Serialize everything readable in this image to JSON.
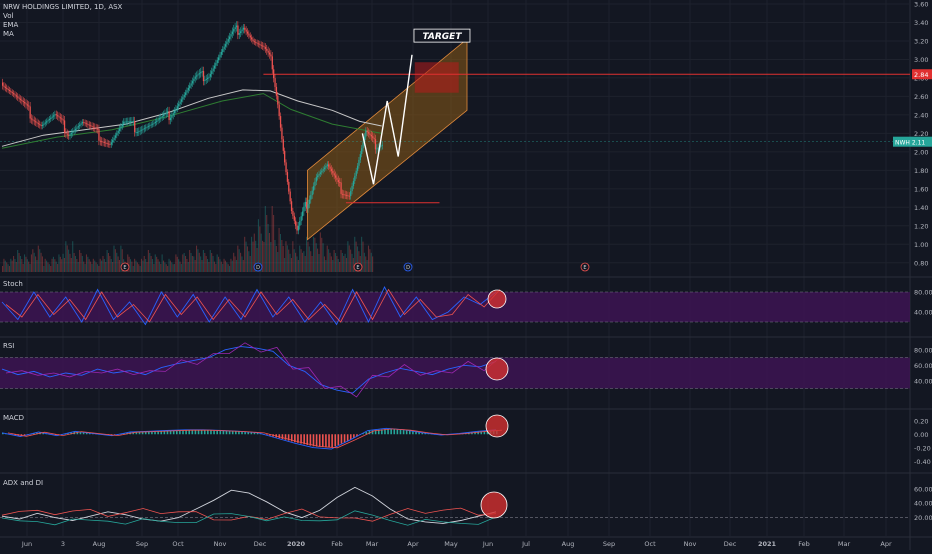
{
  "header": {
    "symbol_title": "NRW HOLDINGS LIMITED, 1D, ASX",
    "indicators": [
      "Vol",
      "EMA",
      "MA"
    ]
  },
  "annotations": {
    "target_label": "TARGET",
    "resistance_price": "2.84",
    "current_price_tag": "NWH 2.11"
  },
  "panes": {
    "stoch": "Stoch",
    "rsi": "RSI",
    "macd": "MACD",
    "adx": "ADX and DI"
  },
  "colors": {
    "background": "#131722",
    "grid": "#1e222d",
    "up_candle": "#26a69a",
    "down_candle": "#ef5350",
    "channel_fill": "#8a5a16",
    "channel_edge": "#e08a3c",
    "resistance_line": "#e03030",
    "oscillator_band": "#3d1452",
    "price_tag": "#26a69a"
  },
  "chart_data": [
    {
      "type": "candlestick",
      "title": "NRW HOLDINGS LIMITED, 1D, ASX",
      "x_tick_labels": [
        "Jun",
        "3",
        "Aug",
        "Sep",
        "Oct",
        "Nov",
        "Dec",
        "2020",
        "Feb",
        "Mar",
        "Apr",
        "May",
        "Jun",
        "Jul",
        "Aug",
        "Sep",
        "Oct",
        "Nov",
        "Dec",
        "2021",
        "Feb",
        "Mar",
        "Apr"
      ],
      "y_tick_labels": [
        "3.60",
        "3.40",
        "3.20",
        "3.00",
        "2.80",
        "2.60",
        "2.40",
        "2.20",
        "2.00",
        "1.80",
        "1.60",
        "1.40",
        "1.20",
        "1.00",
        "0.80"
      ],
      "ylim": [
        0.7,
        3.6
      ],
      "price_path": [
        {
          "x": 0,
          "y": 2.75
        },
        {
          "x": 8,
          "y": 2.62
        },
        {
          "x": 18,
          "y": 2.45
        },
        {
          "x": 28,
          "y": 2.3
        },
        {
          "x": 38,
          "y": 2.38
        },
        {
          "x": 48,
          "y": 2.22
        },
        {
          "x": 58,
          "y": 2.32
        },
        {
          "x": 68,
          "y": 2.2
        },
        {
          "x": 78,
          "y": 2.1
        },
        {
          "x": 88,
          "y": 2.3
        },
        {
          "x": 98,
          "y": 2.26
        },
        {
          "x": 110,
          "y": 2.3
        },
        {
          "x": 120,
          "y": 2.38
        },
        {
          "x": 132,
          "y": 2.62
        },
        {
          "x": 140,
          "y": 2.78
        },
        {
          "x": 150,
          "y": 2.85
        },
        {
          "x": 160,
          "y": 3.1
        },
        {
          "x": 168,
          "y": 3.28
        },
        {
          "x": 175,
          "y": 3.38
        },
        {
          "x": 182,
          "y": 3.2
        },
        {
          "x": 190,
          "y": 3.1
        },
        {
          "x": 196,
          "y": 2.95
        },
        {
          "x": 200,
          "y": 2.55
        },
        {
          "x": 205,
          "y": 1.9
        },
        {
          "x": 210,
          "y": 1.35
        },
        {
          "x": 214,
          "y": 1.12
        },
        {
          "x": 220,
          "y": 1.4
        },
        {
          "x": 228,
          "y": 1.75
        },
        {
          "x": 236,
          "y": 1.85
        },
        {
          "x": 244,
          "y": 1.62
        },
        {
          "x": 252,
          "y": 1.55
        },
        {
          "x": 258,
          "y": 1.85
        },
        {
          "x": 264,
          "y": 2.2
        },
        {
          "x": 270,
          "y": 2.08
        },
        {
          "x": 276,
          "y": 2.11
        }
      ],
      "moving_average_path": [
        {
          "x": 0,
          "y": 2.06
        },
        {
          "x": 30,
          "y": 2.18
        },
        {
          "x": 60,
          "y": 2.24
        },
        {
          "x": 90,
          "y": 2.3
        },
        {
          "x": 120,
          "y": 2.42
        },
        {
          "x": 150,
          "y": 2.58
        },
        {
          "x": 175,
          "y": 2.67
        },
        {
          "x": 195,
          "y": 2.66
        },
        {
          "x": 215,
          "y": 2.55
        },
        {
          "x": 240,
          "y": 2.45
        },
        {
          "x": 260,
          "y": 2.33
        },
        {
          "x": 276,
          "y": 2.28
        }
      ],
      "ema_path": [
        {
          "x": 0,
          "y": 2.04
        },
        {
          "x": 40,
          "y": 2.16
        },
        {
          "x": 80,
          "y": 2.24
        },
        {
          "x": 120,
          "y": 2.38
        },
        {
          "x": 160,
          "y": 2.55
        },
        {
          "x": 190,
          "y": 2.63
        },
        {
          "x": 210,
          "y": 2.46
        },
        {
          "x": 240,
          "y": 2.3
        },
        {
          "x": 276,
          "y": 2.2
        }
      ],
      "channel": {
        "x_start": 222,
        "x_end": 338,
        "lower_start": 1.05,
        "lower_end": 2.45,
        "upper_start": 1.8,
        "upper_end": 3.22
      },
      "projection": [
        {
          "x": 262,
          "y": 2.2
        },
        {
          "x": 270,
          "y": 1.65
        },
        {
          "x": 280,
          "y": 2.55
        },
        {
          "x": 288,
          "y": 1.95
        },
        {
          "x": 298,
          "y": 3.05
        }
      ],
      "resistance_level": 2.84,
      "support_level": 1.45,
      "current_price": 2.11,
      "volume_profile": [
        3,
        5,
        4,
        6,
        3,
        4,
        7,
        5,
        4,
        3,
        5,
        6,
        4,
        3,
        5,
        4,
        3,
        4,
        5,
        6,
        5,
        4,
        3,
        6,
        8,
        12,
        15,
        10,
        7,
        6,
        8,
        9,
        6,
        5,
        7,
        8,
        6
      ]
    },
    {
      "type": "line",
      "title": "Stoch",
      "y_tick_labels": [
        "80.00",
        "40.00"
      ],
      "ylim": [
        0,
        100
      ],
      "band": [
        20,
        80
      ],
      "values": [
        60,
        25,
        80,
        30,
        70,
        20,
        85,
        25,
        60,
        15,
        80,
        30,
        75,
        20,
        70,
        25,
        85,
        30,
        70,
        20,
        60,
        15,
        85,
        20,
        90,
        30,
        70,
        25,
        40,
        70,
        55,
        80
      ]
    },
    {
      "type": "line",
      "title": "RSI",
      "y_tick_labels": [
        "80.00",
        "60.00",
        "40.00"
      ],
      "ylim": [
        10,
        90
      ],
      "band": [
        30,
        70
      ],
      "values": [
        55,
        48,
        52,
        45,
        50,
        47,
        55,
        50,
        53,
        48,
        57,
        62,
        66,
        70,
        80,
        84,
        82,
        78,
        60,
        52,
        35,
        28,
        24,
        42,
        50,
        56,
        52,
        48,
        55,
        60,
        58,
        65
      ]
    },
    {
      "type": "bar",
      "title": "MACD",
      "y_tick_labels": [
        "0.20",
        "0.00",
        "-0.20",
        "-0.40"
      ],
      "ylim": [
        -0.5,
        0.3
      ],
      "values": [
        0.02,
        -0.03,
        0.03,
        -0.02,
        0.04,
        0.01,
        -0.02,
        0.03,
        0.04,
        0.05,
        0.06,
        0.06,
        0.05,
        0.04,
        0.02,
        -0.05,
        -0.12,
        -0.18,
        -0.2,
        -0.08,
        0.05,
        0.08,
        0.06,
        0.02,
        -0.01,
        0.01,
        0.04,
        0.06
      ]
    },
    {
      "type": "line",
      "title": "ADX and DI",
      "y_tick_labels": [
        "60.00",
        "40.00",
        "20.00"
      ],
      "ylim": [
        0,
        75
      ],
      "band": [
        20
      ],
      "values": [
        22,
        18,
        26,
        20,
        16,
        22,
        28,
        24,
        18,
        15,
        20,
        32,
        44,
        58,
        54,
        42,
        28,
        20,
        30,
        48,
        62,
        50,
        32,
        18,
        14,
        12,
        16,
        22,
        28
      ]
    }
  ]
}
